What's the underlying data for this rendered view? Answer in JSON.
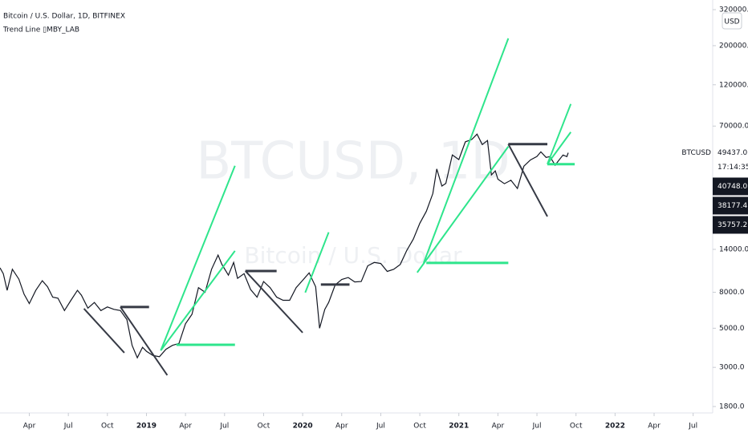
{
  "chart_data": {
    "type": "line",
    "title": "Bitcoin / U.S. Dollar, 1D, BITFINEX",
    "subtitle": "Trend Line ▯MBY_LAB",
    "watermark": "BTCUSD, 1D",
    "watermark_subtitle": "Bitcoin / U.S. Dollar",
    "currency": "USD",
    "log_scale": true,
    "xlim": [
      0.75,
      55.5
    ],
    "ylim": [
      1655,
      363000
    ],
    "xticks": [
      {
        "value": 3,
        "label": "Apr"
      },
      {
        "value": 6,
        "label": "Jul"
      },
      {
        "value": 9,
        "label": "Oct"
      },
      {
        "value": 12,
        "label": "2019"
      },
      {
        "value": 15,
        "label": "Apr"
      },
      {
        "value": 18,
        "label": "Jul"
      },
      {
        "value": 21,
        "label": "Oct"
      },
      {
        "value": 24,
        "label": "2020"
      },
      {
        "value": 27,
        "label": "Apr"
      },
      {
        "value": 30,
        "label": "Jul"
      },
      {
        "value": 33,
        "label": "Oct"
      },
      {
        "value": 36,
        "label": "2021"
      },
      {
        "value": 39,
        "label": "Apr"
      },
      {
        "value": 42,
        "label": "Jul"
      },
      {
        "value": 45,
        "label": "Oct"
      },
      {
        "value": 48,
        "label": "2022"
      },
      {
        "value": 51,
        "label": "Apr"
      },
      {
        "value": 54,
        "label": "Jul"
      }
    ],
    "yticks": [
      {
        "value": 1800,
        "label": "1800.0"
      },
      {
        "value": 3000,
        "label": "3000.0"
      },
      {
        "value": 5000,
        "label": "5000.0"
      },
      {
        "value": 8000,
        "label": "8000.0"
      },
      {
        "value": 14000,
        "label": "14000.0"
      },
      {
        "value": 70000,
        "label": "70000.0"
      },
      {
        "value": 120000,
        "label": "120000.0"
      },
      {
        "value": 200000,
        "label": "200000.0"
      },
      {
        "value": 320000,
        "label": "320000.0"
      }
    ],
    "series": [
      {
        "name": "BTCUSD",
        "color": "#131722",
        "x": [
          0.75,
          1.0,
          1.3,
          1.7,
          2.2,
          2.6,
          3.0,
          3.5,
          4.0,
          4.4,
          4.8,
          5.2,
          5.7,
          6.2,
          6.7,
          7.0,
          7.5,
          8.0,
          8.5,
          9.0,
          9.5,
          10.0,
          10.5,
          10.9,
          11.3,
          11.7,
          12.0,
          12.5,
          13.0,
          13.5,
          14.0,
          14.5,
          15.0,
          15.5,
          16.0,
          16.5,
          17.0,
          17.5,
          17.8,
          18.3,
          18.7,
          19.0,
          19.5,
          20.0,
          20.5,
          21.0,
          21.5,
          22.0,
          22.5,
          23.0,
          23.5,
          24.0,
          24.5,
          25.0,
          25.3,
          25.7,
          26.0,
          26.5,
          27.0,
          27.5,
          28.0,
          28.5,
          29.0,
          29.5,
          30.0,
          30.5,
          31.0,
          31.5,
          32.0,
          32.5,
          33.0,
          33.5,
          34.0,
          34.3,
          34.7,
          35.0,
          35.5,
          36.0,
          36.5,
          37.0,
          37.4,
          37.8,
          38.2,
          38.5,
          38.8,
          39.0,
          39.5,
          40.0,
          40.5,
          41.0,
          41.5,
          42.0,
          42.3,
          42.7,
          43.0,
          43.4,
          43.6,
          44.0,
          44.3,
          44.4
        ],
        "values": [
          11000,
          10200,
          8200,
          10800,
          9500,
          7800,
          6900,
          8200,
          9300,
          8600,
          7500,
          7400,
          6300,
          7200,
          8200,
          7700,
          6500,
          7000,
          6300,
          6600,
          6400,
          6300,
          5600,
          4000,
          3400,
          3900,
          3700,
          3500,
          3450,
          3800,
          4000,
          4100,
          5300,
          6000,
          8500,
          8000,
          10800,
          13000,
          11500,
          10000,
          11800,
          9600,
          10200,
          8300,
          7500,
          9200,
          8500,
          7500,
          7200,
          7200,
          8500,
          9350,
          10300,
          8600,
          5000,
          6400,
          7000,
          8800,
          9450,
          9700,
          9150,
          9200,
          11300,
          11800,
          11650,
          10500,
          10800,
          11500,
          13800,
          16000,
          19700,
          23000,
          29000,
          40000,
          32000,
          33100,
          48000,
          45200,
          57000,
          58800,
          63000,
          55000,
          58000,
          37000,
          39000,
          35000,
          33000,
          34500,
          31000,
          41500,
          45000,
          47100,
          50000,
          46500,
          47000,
          42000,
          44000,
          48000,
          47000,
          49437
        ]
      }
    ],
    "trend_lines": [
      {
        "x": [
          13.1,
          18.8
        ],
        "y": [
          3740,
          41700
        ],
        "color": "#2ee58c"
      },
      {
        "x": [
          13.1,
          18.8
        ],
        "y": [
          3740,
          13730
        ],
        "color": "#2ee58c"
      },
      {
        "x": [
          14.3,
          18.8
        ],
        "y": [
          4030,
          4030
        ],
        "color": "#2ee58c"
      },
      {
        "x": [
          33.3,
          39.8
        ],
        "y": [
          11730,
          220000
        ],
        "color": "#2ee58c"
      },
      {
        "x": [
          33.5,
          39.8
        ],
        "y": [
          11730,
          11730
        ],
        "color": "#2ee58c"
      },
      {
        "x": [
          32.8,
          39.8
        ],
        "y": [
          10350,
          53600
        ],
        "color": "#2ee58c"
      },
      {
        "x": [
          42.8,
          44.6
        ],
        "y": [
          42600,
          93400
        ],
        "color": "#2ee58c"
      },
      {
        "x": [
          42.8,
          44.6
        ],
        "y": [
          42600,
          64700
        ],
        "color": "#2ee58c"
      },
      {
        "x": [
          42.8,
          44.9
        ],
        "y": [
          42600,
          42600
        ],
        "color": "#2ee58c"
      },
      {
        "x": [
          24.2,
          26.0
        ],
        "y": [
          7970,
          17500
        ],
        "color": "#2ee58c"
      },
      {
        "x": [
          39.8,
          42.8
        ],
        "y": [
          55300,
          55300
        ],
        "color": "#363a45"
      },
      {
        "x": [
          39.8,
          42.8
        ],
        "y": [
          55300,
          21500
        ],
        "color": "#363a45"
      },
      {
        "x": [
          10.0,
          12.2
        ],
        "y": [
          6600,
          6600
        ],
        "color": "#363a45"
      },
      {
        "x": [
          7.2,
          10.3
        ],
        "y": [
          6460,
          3630
        ],
        "color": "#363a45"
      },
      {
        "x": [
          10.0,
          13.6
        ],
        "y": [
          6600,
          2710
        ],
        "color": "#363a45"
      },
      {
        "x": [
          19.6,
          22.0
        ],
        "y": [
          10560,
          10560
        ],
        "color": "#363a45"
      },
      {
        "x": [
          19.6,
          24.0
        ],
        "y": [
          10560,
          4720
        ],
        "color": "#363a45"
      },
      {
        "x": [
          25.4,
          27.6
        ],
        "y": [
          8840,
          8840
        ],
        "color": "#363a45"
      }
    ],
    "countdown": "17:14:35",
    "price_tags": [
      {
        "value": 49437,
        "label": "49437.0"
      },
      {
        "value": 40748,
        "label": "40748.0"
      },
      {
        "value": 38177.4,
        "label": "38177.4"
      },
      {
        "value": 35757.2,
        "label": "35757.2"
      }
    ]
  }
}
